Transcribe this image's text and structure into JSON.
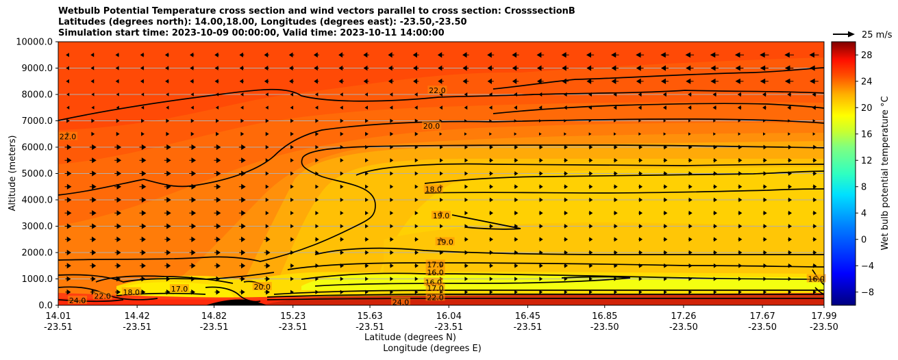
{
  "chart_data": {
    "type": "contourf",
    "title_lines": [
      "Wetbulb Potential Temperature cross section and wind vectors parallel to cross section: CrosssectionB",
      "Latitudes (degrees north): 14.00,18.00, Longitudes (degrees east): -23.50,-23.50",
      "Simulation start time: 2023-10-09 00:00:00, Valid time: 2023-10-11 14:00:00"
    ],
    "ylabel": "Altitude (meters)",
    "xlabel_lat": "Latitude (degrees N)",
    "xlabel_lon": "Longitude (degrees E)",
    "ylim": [
      0,
      10000
    ],
    "yticks": [
      "0.0",
      "1000.0",
      "2000.0",
      "3000.0",
      "4000.0",
      "5000.0",
      "6000.0",
      "7000.0",
      "8000.0",
      "9000.0",
      "10000.0"
    ],
    "xtick_lat": [
      "14.01",
      "14.42",
      "14.82",
      "15.23",
      "15.63",
      "16.04",
      "16.45",
      "16.85",
      "17.26",
      "17.67",
      "17.99"
    ],
    "xtick_lon": [
      "-23.51",
      "-23.51",
      "-23.51",
      "-23.51",
      "-23.51",
      "-23.51",
      "-23.51",
      "-23.50",
      "-23.50",
      "-23.50",
      "-23.50"
    ],
    "colorbar_label": "Wet bulb potential temperature $^\\circ$C",
    "colorbar_label_display": "Wet bulb potential temperature °C",
    "colorbar_range": [
      -10,
      30
    ],
    "colorbar_ticks": [
      "−8",
      "−4",
      "0",
      "4",
      "8",
      "12",
      "16",
      "20",
      "24",
      "28"
    ],
    "quiver_key": "25 m/s",
    "contour_labels": [
      {
        "text": "22.0",
        "lat": 15.98,
        "alt": 8150
      },
      {
        "text": "20.0",
        "lat": 15.95,
        "alt": 6800
      },
      {
        "text": "22.0",
        "lat": 14.06,
        "alt": 6400
      },
      {
        "text": "18.0",
        "lat": 15.96,
        "alt": 4400
      },
      {
        "text": "19.0",
        "lat": 16.0,
        "alt": 3400
      },
      {
        "text": "19.0",
        "lat": 16.02,
        "alt": 2400
      },
      {
        "text": "17.0",
        "lat": 15.97,
        "alt": 1550
      },
      {
        "text": "16.0",
        "lat": 15.97,
        "alt": 1250
      },
      {
        "text": "16.0",
        "lat": 15.96,
        "alt": 870
      },
      {
        "text": "17.0",
        "lat": 15.97,
        "alt": 650
      },
      {
        "text": "22.0",
        "lat": 15.97,
        "alt": 300
      },
      {
        "text": "17.0",
        "lat": 14.64,
        "alt": 620
      },
      {
        "text": "18.0",
        "lat": 14.39,
        "alt": 500
      },
      {
        "text": "22.0",
        "lat": 14.24,
        "alt": 350
      },
      {
        "text": "24.0",
        "lat": 14.11,
        "alt": 180
      },
      {
        "text": "20.0",
        "lat": 15.07,
        "alt": 700
      },
      {
        "text": "24.0",
        "lat": 15.79,
        "alt": 120
      },
      {
        "text": "16.0",
        "lat": 17.95,
        "alt": 1000
      }
    ]
  }
}
